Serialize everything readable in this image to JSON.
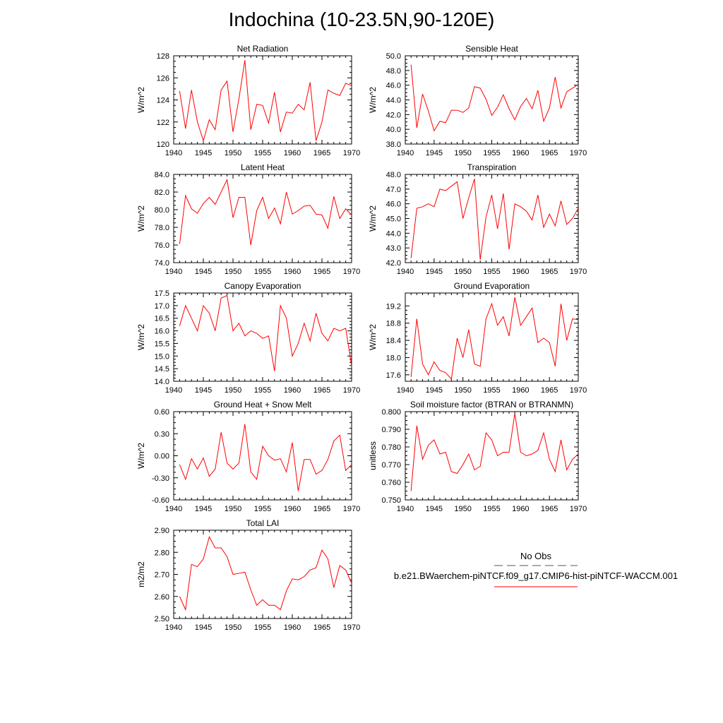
{
  "page": {
    "title": "Indochina (10-23.5N,90-120E)"
  },
  "legend": {
    "obs_label": "No Obs",
    "case_label": "b.e21.BWaerchem-piNTCF.f09_g17.CMIP6-hist-piNTCF-WACCM.001",
    "obs_color": "#555555",
    "case_color": "#ff0000"
  },
  "chart_data": [
    {
      "type": "line",
      "title": "Net Radiation",
      "ylabel": "W/m^2",
      "xlim": [
        1940,
        1970
      ],
      "ylim": [
        120,
        128
      ],
      "x_ticks": [
        1940,
        1945,
        1950,
        1955,
        1960,
        1965,
        1970
      ],
      "y_ticks": [
        120,
        122,
        124,
        126,
        128
      ],
      "y_tick_labels": [
        "120",
        "122",
        "124",
        "126",
        "128"
      ],
      "series": [
        {
          "color": "#ff0000",
          "x": [
            1941,
            1942,
            1943,
            1944,
            1945,
            1946,
            1947,
            1948,
            1949,
            1950,
            1951,
            1952,
            1953,
            1954,
            1955,
            1956,
            1957,
            1958,
            1959,
            1960,
            1961,
            1962,
            1963,
            1964,
            1965,
            1966,
            1967,
            1968,
            1969,
            1970
          ],
          "y": [
            124.8,
            121.4,
            124.9,
            122.0,
            120.3,
            122.2,
            121.3,
            124.9,
            125.7,
            121.1,
            124.1,
            127.6,
            121.3,
            123.6,
            123.5,
            121.9,
            124.7,
            121.1,
            122.9,
            122.8,
            123.6,
            123.1,
            125.6,
            120.3,
            122.0,
            124.9,
            124.6,
            124.4,
            125.5,
            125.3
          ]
        }
      ]
    },
    {
      "type": "line",
      "title": "Sensible Heat",
      "ylabel": "W/m^2",
      "xlim": [
        1940,
        1970
      ],
      "ylim": [
        38,
        50
      ],
      "x_ticks": [
        1940,
        1945,
        1950,
        1955,
        1960,
        1965,
        1970
      ],
      "y_ticks": [
        38,
        40,
        42,
        44,
        46,
        48,
        50
      ],
      "y_tick_labels": [
        "38.0",
        "40.0",
        "42.0",
        "44.0",
        "46.0",
        "48.0",
        "50.0"
      ],
      "series": [
        {
          "color": "#ff0000",
          "x": [
            1941,
            1942,
            1943,
            1944,
            1945,
            1946,
            1947,
            1948,
            1949,
            1950,
            1951,
            1952,
            1953,
            1954,
            1955,
            1956,
            1957,
            1958,
            1959,
            1960,
            1961,
            1962,
            1963,
            1964,
            1965,
            1966,
            1967,
            1968,
            1969,
            1970
          ],
          "y": [
            48.8,
            40.2,
            44.8,
            42.5,
            39.8,
            41.1,
            40.9,
            42.6,
            42.6,
            42.3,
            42.9,
            45.8,
            45.6,
            44.1,
            41.9,
            43.0,
            44.7,
            42.8,
            41.3,
            43.1,
            44.2,
            42.8,
            45.3,
            41.1,
            42.9,
            47.1,
            42.9,
            45.1,
            45.6,
            46.1
          ]
        }
      ]
    },
    {
      "type": "line",
      "title": "Latent Heat",
      "ylabel": "W/m^2",
      "xlim": [
        1940,
        1970
      ],
      "ylim": [
        74,
        84
      ],
      "x_ticks": [
        1940,
        1945,
        1950,
        1955,
        1960,
        1965,
        1970
      ],
      "y_ticks": [
        74,
        76,
        78,
        80,
        82,
        84
      ],
      "y_tick_labels": [
        "74.0",
        "76.0",
        "78.0",
        "80.0",
        "82.0",
        "84.0"
      ],
      "series": [
        {
          "color": "#ff0000",
          "x": [
            1941,
            1942,
            1943,
            1944,
            1945,
            1946,
            1947,
            1948,
            1949,
            1950,
            1951,
            1952,
            1953,
            1954,
            1955,
            1956,
            1957,
            1958,
            1959,
            1960,
            1961,
            1962,
            1963,
            1964,
            1965,
            1966,
            1967,
            1968,
            1969,
            1970
          ],
          "y": [
            76.1,
            81.6,
            80.1,
            79.6,
            80.7,
            81.4,
            80.6,
            82.0,
            83.4,
            79.1,
            81.4,
            81.4,
            76.0,
            79.9,
            81.4,
            79.0,
            80.2,
            78.4,
            82.0,
            79.5,
            79.9,
            80.4,
            80.5,
            79.5,
            79.4,
            77.9,
            81.5,
            79.0,
            80.1,
            79.4
          ]
        }
      ]
    },
    {
      "type": "line",
      "title": "Transpiration",
      "ylabel": "W/m^2",
      "xlim": [
        1940,
        1970
      ],
      "ylim": [
        42,
        48
      ],
      "x_ticks": [
        1940,
        1945,
        1950,
        1955,
        1960,
        1965,
        1970
      ],
      "y_ticks": [
        42,
        43,
        44,
        45,
        46,
        47,
        48
      ],
      "y_tick_labels": [
        "42.0",
        "43.0",
        "44.0",
        "45.0",
        "46.0",
        "47.0",
        "48.0"
      ],
      "series": [
        {
          "color": "#ff0000",
          "x": [
            1941,
            1942,
            1943,
            1944,
            1945,
            1946,
            1947,
            1948,
            1949,
            1950,
            1951,
            1952,
            1953,
            1954,
            1955,
            1956,
            1957,
            1958,
            1959,
            1960,
            1961,
            1962,
            1963,
            1964,
            1965,
            1966,
            1967,
            1968,
            1969,
            1970
          ],
          "y": [
            42.3,
            45.7,
            45.8,
            46.0,
            45.8,
            47.0,
            46.9,
            47.2,
            47.5,
            45.0,
            46.4,
            47.7,
            42.2,
            45.1,
            46.6,
            44.3,
            46.7,
            42.9,
            46.0,
            45.8,
            45.5,
            44.9,
            46.6,
            44.4,
            45.3,
            44.5,
            46.2,
            44.6,
            45.0,
            45.7
          ]
        }
      ]
    },
    {
      "type": "line",
      "title": "Canopy Evaporation",
      "ylabel": "W/m^2",
      "xlim": [
        1940,
        1970
      ],
      "ylim": [
        14.0,
        17.5
      ],
      "x_ticks": [
        1940,
        1945,
        1950,
        1955,
        1960,
        1965,
        1970
      ],
      "y_ticks": [
        14.0,
        14.5,
        15.0,
        15.5,
        16.0,
        16.5,
        17.0,
        17.5
      ],
      "y_tick_labels": [
        "14.0",
        "14.5",
        "15.0",
        "15.5",
        "16.0",
        "16.5",
        "17.0",
        "17.5"
      ],
      "series": [
        {
          "color": "#ff0000",
          "x": [
            1941,
            1942,
            1943,
            1944,
            1945,
            1946,
            1947,
            1948,
            1949,
            1950,
            1951,
            1952,
            1953,
            1954,
            1955,
            1956,
            1957,
            1958,
            1959,
            1960,
            1961,
            1962,
            1963,
            1964,
            1965,
            1966,
            1967,
            1968,
            1969,
            1970
          ],
          "y": [
            16.2,
            17.0,
            16.5,
            16.0,
            17.0,
            16.7,
            16.0,
            17.3,
            17.4,
            16.0,
            16.3,
            15.8,
            16.0,
            15.9,
            15.7,
            15.8,
            14.4,
            17.0,
            16.5,
            15.0,
            15.5,
            16.3,
            15.6,
            16.7,
            15.9,
            15.6,
            16.1,
            16.0,
            16.1,
            14.6
          ]
        }
      ]
    },
    {
      "type": "line",
      "title": "Ground Evaporation",
      "ylabel": "W/m^2",
      "xlim": [
        1940,
        1970
      ],
      "ylim": [
        17.45,
        19.5
      ],
      "x_ticks": [
        1940,
        1945,
        1950,
        1955,
        1960,
        1965,
        1970
      ],
      "y_ticks": [
        17.6,
        18.0,
        18.4,
        18.8,
        19.2
      ],
      "y_tick_labels": [
        "17.6",
        "18.0",
        "18.4",
        "18.8",
        "19.2"
      ],
      "series": [
        {
          "color": "#ff0000",
          "x": [
            1941,
            1942,
            1943,
            1944,
            1945,
            1946,
            1947,
            1948,
            1949,
            1950,
            1951,
            1952,
            1953,
            1954,
            1955,
            1956,
            1957,
            1958,
            1959,
            1960,
            1961,
            1962,
            1963,
            1964,
            1965,
            1966,
            1967,
            1968,
            1969,
            1970
          ],
          "y": [
            17.55,
            18.9,
            17.85,
            17.6,
            17.9,
            17.7,
            17.65,
            17.5,
            18.45,
            18.0,
            18.65,
            17.85,
            17.8,
            18.9,
            19.25,
            18.75,
            18.95,
            18.5,
            19.4,
            18.75,
            18.95,
            19.15,
            18.35,
            18.45,
            18.35,
            17.8,
            19.25,
            18.4,
            18.9,
            18.88
          ]
        }
      ]
    },
    {
      "type": "line",
      "title": "Ground Heat + Snow Melt",
      "ylabel": "W/m^2",
      "xlim": [
        1940,
        1970
      ],
      "ylim": [
        -0.6,
        0.6
      ],
      "x_ticks": [
        1940,
        1945,
        1950,
        1955,
        1960,
        1965,
        1970
      ],
      "y_ticks": [
        -0.6,
        -0.3,
        0.0,
        0.3,
        0.6
      ],
      "y_tick_labels": [
        "-0.60",
        "-0.30",
        "0.00",
        "0.30",
        "0.60"
      ],
      "series": [
        {
          "color": "#ff0000",
          "x": [
            1941,
            1942,
            1943,
            1944,
            1945,
            1946,
            1947,
            1948,
            1949,
            1950,
            1951,
            1952,
            1953,
            1954,
            1955,
            1956,
            1957,
            1958,
            1959,
            1960,
            1961,
            1962,
            1963,
            1964,
            1965,
            1966,
            1967,
            1968,
            1969,
            1970
          ],
          "y": [
            -0.12,
            -0.32,
            -0.04,
            -0.18,
            -0.03,
            -0.28,
            -0.18,
            0.32,
            -0.1,
            -0.18,
            -0.1,
            0.43,
            -0.22,
            -0.32,
            0.13,
            0.0,
            -0.06,
            -0.04,
            -0.22,
            0.18,
            -0.48,
            -0.05,
            -0.05,
            -0.25,
            -0.2,
            -0.05,
            0.2,
            0.28,
            -0.2,
            -0.12
          ]
        }
      ]
    },
    {
      "type": "line",
      "title": "Soil moisture factor (BTRAN or BTRANMN)",
      "ylabel": "unitless",
      "xlim": [
        1940,
        1970
      ],
      "ylim": [
        0.75,
        0.8
      ],
      "x_ticks": [
        1940,
        1945,
        1950,
        1955,
        1960,
        1965,
        1970
      ],
      "y_ticks": [
        0.75,
        0.76,
        0.77,
        0.78,
        0.79,
        0.8
      ],
      "y_tick_labels": [
        "0.750",
        "0.760",
        "0.770",
        "0.780",
        "0.790",
        "0.800"
      ],
      "series": [
        {
          "color": "#ff0000",
          "x": [
            1941,
            1942,
            1943,
            1944,
            1945,
            1946,
            1947,
            1948,
            1949,
            1950,
            1951,
            1952,
            1953,
            1954,
            1955,
            1956,
            1957,
            1958,
            1959,
            1960,
            1961,
            1962,
            1963,
            1964,
            1965,
            1966,
            1967,
            1968,
            1969,
            1970
          ],
          "y": [
            0.755,
            0.792,
            0.773,
            0.781,
            0.784,
            0.776,
            0.777,
            0.766,
            0.765,
            0.77,
            0.776,
            0.767,
            0.769,
            0.788,
            0.784,
            0.775,
            0.777,
            0.777,
            0.799,
            0.777,
            0.775,
            0.776,
            0.778,
            0.788,
            0.773,
            0.766,
            0.784,
            0.767,
            0.773,
            0.776
          ]
        }
      ]
    },
    {
      "type": "line",
      "title": "Total LAI",
      "ylabel": "m2/m2",
      "xlim": [
        1940,
        1970
      ],
      "ylim": [
        2.5,
        2.9
      ],
      "x_ticks": [
        1940,
        1945,
        1950,
        1955,
        1960,
        1965,
        1970
      ],
      "y_ticks": [
        2.5,
        2.6,
        2.7,
        2.8,
        2.9
      ],
      "y_tick_labels": [
        "2.50",
        "2.60",
        "2.70",
        "2.80",
        "2.90"
      ],
      "series": [
        {
          "color": "#ff0000",
          "x": [
            1941,
            1942,
            1943,
            1944,
            1945,
            1946,
            1947,
            1948,
            1949,
            1950,
            1951,
            1952,
            1953,
            1954,
            1955,
            1956,
            1957,
            1958,
            1959,
            1960,
            1961,
            1962,
            1963,
            1964,
            1965,
            1966,
            1967,
            1968,
            1969,
            1970
          ],
          "y": [
            2.6,
            2.54,
            2.745,
            2.735,
            2.77,
            2.87,
            2.82,
            2.82,
            2.78,
            2.7,
            2.705,
            2.71,
            2.63,
            2.56,
            2.585,
            2.56,
            2.56,
            2.54,
            2.625,
            2.68,
            2.675,
            2.69,
            2.72,
            2.73,
            2.81,
            2.77,
            2.64,
            2.74,
            2.72,
            2.66
          ]
        }
      ]
    }
  ]
}
